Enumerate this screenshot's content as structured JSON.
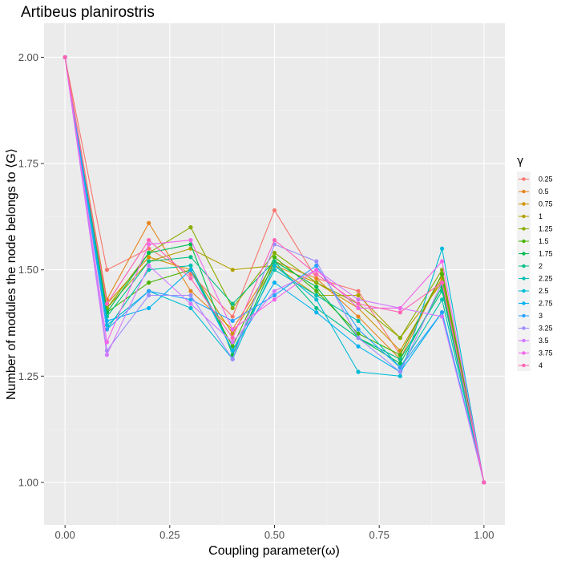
{
  "chart_data": {
    "type": "line",
    "title": "Artibeus planirostris",
    "xlabel": "Coupling parameter(ω)",
    "ylabel": "Number of modules the node belongs to ⟨G⟩",
    "xlim": [
      -0.05,
      1.05
    ],
    "ylim": [
      0.9,
      2.08
    ],
    "x_ticks": [
      0,
      0.25,
      0.5,
      0.75,
      1
    ],
    "x_tick_labels": [
      "0.00",
      "0.25",
      "0.50",
      "0.75",
      "1.00"
    ],
    "y_ticks": [
      1,
      1.25,
      1.5,
      1.75,
      2
    ],
    "y_tick_labels": [
      "1.00",
      "1.25",
      "1.50",
      "1.75",
      "2.00"
    ],
    "grid": true,
    "legend_title": "γ",
    "legend_position": "right",
    "x": [
      0,
      0.1,
      0.2,
      0.3,
      0.4,
      0.5,
      0.6,
      0.7,
      0.8,
      0.9,
      1.0
    ],
    "series": [
      {
        "name": "0.25",
        "color": "#F8766D",
        "values": [
          2.0,
          1.5,
          1.55,
          1.49,
          1.39,
          1.64,
          1.48,
          1.45,
          1.3,
          1.49,
          1.0
        ]
      },
      {
        "name": "0.5",
        "color": "#E7851E",
        "values": [
          2.0,
          1.43,
          1.61,
          1.45,
          1.36,
          1.52,
          1.48,
          1.39,
          1.29,
          1.49,
          1.0
        ]
      },
      {
        "name": "0.75",
        "color": "#D09400",
        "values": [
          2.0,
          1.42,
          1.53,
          1.5,
          1.35,
          1.51,
          1.47,
          1.41,
          1.31,
          1.48,
          1.0
        ]
      },
      {
        "name": "1",
        "color": "#B2A100",
        "values": [
          2.0,
          1.41,
          1.52,
          1.55,
          1.5,
          1.51,
          1.44,
          1.44,
          1.34,
          1.47,
          1.0
        ]
      },
      {
        "name": "1.25",
        "color": "#89AC00",
        "values": [
          2.0,
          1.41,
          1.54,
          1.6,
          1.41,
          1.54,
          1.47,
          1.42,
          1.34,
          1.5,
          1.0
        ]
      },
      {
        "name": "1.5",
        "color": "#45B500",
        "values": [
          2.0,
          1.4,
          1.47,
          1.5,
          1.32,
          1.53,
          1.45,
          1.35,
          1.3,
          1.49,
          1.0
        ]
      },
      {
        "name": "1.75",
        "color": "#00BC51",
        "values": [
          2.0,
          1.4,
          1.54,
          1.56,
          1.3,
          1.52,
          1.46,
          1.34,
          1.28,
          1.46,
          1.0
        ]
      },
      {
        "name": "2",
        "color": "#00C087",
        "values": [
          2.0,
          1.39,
          1.52,
          1.53,
          1.42,
          1.52,
          1.41,
          1.34,
          1.29,
          1.45,
          1.0
        ]
      },
      {
        "name": "2.25",
        "color": "#00C0B2",
        "values": [
          2.0,
          1.36,
          1.5,
          1.51,
          1.31,
          1.5,
          1.44,
          1.38,
          1.27,
          1.43,
          1.0
        ]
      },
      {
        "name": "2.5",
        "color": "#00BCD6",
        "values": [
          2.0,
          1.37,
          1.45,
          1.41,
          1.29,
          1.51,
          1.43,
          1.26,
          1.25,
          1.55,
          1.0
        ]
      },
      {
        "name": "2.75",
        "color": "#00B3F2",
        "values": [
          2.0,
          1.38,
          1.41,
          1.5,
          1.31,
          1.47,
          1.4,
          1.32,
          1.26,
          1.4,
          1.0
        ]
      },
      {
        "name": "3",
        "color": "#29A3FF",
        "values": [
          2.0,
          1.36,
          1.45,
          1.43,
          1.38,
          1.44,
          1.51,
          1.36,
          1.27,
          1.4,
          1.0
        ]
      },
      {
        "name": "3.25",
        "color": "#9C8DFF",
        "values": [
          2.0,
          1.31,
          1.44,
          1.44,
          1.29,
          1.56,
          1.52,
          1.34,
          1.26,
          1.47,
          1.0
        ]
      },
      {
        "name": "3.5",
        "color": "#D277FF",
        "values": [
          2.0,
          1.3,
          1.51,
          1.42,
          1.33,
          1.45,
          1.5,
          1.43,
          1.41,
          1.39,
          1.0
        ]
      },
      {
        "name": "3.75",
        "color": "#F166E8",
        "values": [
          2.0,
          1.33,
          1.56,
          1.57,
          1.36,
          1.43,
          1.5,
          1.41,
          1.41,
          1.52,
          1.0
        ]
      },
      {
        "name": "4",
        "color": "#FF63B6",
        "values": [
          2.0,
          1.42,
          1.57,
          1.48,
          1.34,
          1.57,
          1.49,
          1.42,
          1.4,
          1.47,
          1.0
        ]
      }
    ]
  }
}
